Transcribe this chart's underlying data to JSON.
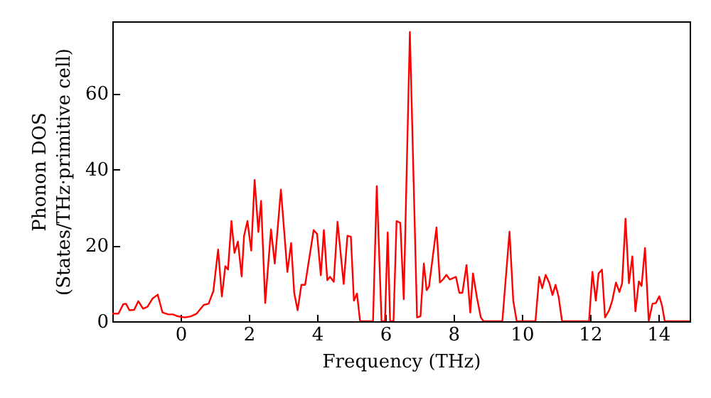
{
  "chart_data": {
    "type": "line",
    "xlabel": "Frequency (THz)",
    "ylabel": "Phonon DOS\n(States/THz·primitive cell)",
    "xlim": [
      -2,
      14.92
    ],
    "ylim": [
      0,
      79
    ],
    "xticks": [
      0,
      2,
      4,
      6,
      8,
      10,
      12,
      14
    ],
    "yticks": [
      0,
      20,
      40,
      60
    ],
    "grid": false,
    "marker": "none",
    "line_style": "solid",
    "x": [
      -2.0,
      -1.82,
      -1.68,
      -1.6,
      -1.5,
      -1.36,
      -1.24,
      -1.1,
      -0.97,
      -0.82,
      -0.67,
      -0.53,
      -0.36,
      -0.22,
      -0.08,
      0.13,
      0.3,
      0.47,
      0.68,
      0.82,
      0.96,
      1.1,
      1.21,
      1.31,
      1.39,
      1.49,
      1.58,
      1.68,
      1.79,
      1.86,
      1.96,
      2.07,
      2.17,
      2.28,
      2.36,
      2.48,
      2.65,
      2.76,
      2.94,
      3.13,
      3.24,
      3.33,
      3.43,
      3.54,
      3.65,
      3.74,
      3.9,
      4.0,
      4.11,
      4.2,
      4.3,
      4.38,
      4.49,
      4.6,
      4.78,
      4.89,
      4.99,
      5.08,
      5.17,
      5.26,
      5.64,
      5.75,
      5.89,
      5.99,
      6.07,
      6.14,
      6.24,
      6.33,
      6.44,
      6.54,
      6.72,
      6.93,
      7.03,
      7.13,
      7.21,
      7.28,
      7.5,
      7.6,
      7.69,
      7.79,
      7.89,
      7.97,
      8.07,
      8.17,
      8.26,
      8.38,
      8.49,
      8.57,
      8.69,
      8.8,
      8.88,
      9.43,
      9.64,
      9.75,
      9.85,
      10.4,
      10.51,
      10.6,
      10.7,
      10.81,
      10.9,
      10.99,
      11.08,
      11.18,
      11.97,
      12.07,
      12.17,
      12.25,
      12.35,
      12.44,
      12.56,
      12.65,
      12.76,
      12.86,
      12.94,
      13.04,
      13.14,
      13.24,
      13.33,
      13.43,
      13.51,
      13.61,
      13.72,
      13.83,
      13.93,
      14.03,
      14.11,
      14.19,
      14.92
    ],
    "series": [
      {
        "color": "#ff0000",
        "values": [
          2.0,
          2.0,
          4.5,
          4.6,
          2.9,
          3.0,
          5.3,
          3.3,
          3.8,
          6.0,
          7.0,
          2.3,
          1.8,
          1.8,
          1.3,
          1.0,
          1.3,
          2.0,
          4.3,
          4.6,
          7.9,
          18.9,
          6.5,
          14.5,
          13.6,
          26.4,
          18,
          21,
          11.8,
          22.5,
          26.4,
          18.6,
          37.2,
          23.5,
          31.7,
          4.8,
          24.2,
          15.2,
          34.7,
          13,
          20.6,
          7.5,
          2.9,
          9.6,
          9.6,
          14.8,
          24.0,
          23,
          12.1,
          24,
          10.8,
          11.7,
          10.4,
          26.2,
          9.8,
          22.5,
          22.3,
          5.4,
          7.3,
          0,
          0,
          35.6,
          0,
          0,
          23.4,
          0,
          0,
          26.4,
          25.9,
          5.8,
          76.2,
          1.0,
          1.3,
          15.2,
          8.2,
          9.1,
          24.7,
          10.2,
          11,
          12.2,
          11,
          11.3,
          11.7,
          7.5,
          7.5,
          14.8,
          2.3,
          12.6,
          6.0,
          1.0,
          0,
          0,
          23.6,
          5.4,
          0,
          0,
          11.7,
          8.7,
          12.2,
          10,
          6.9,
          9.6,
          6.4,
          0,
          0,
          13,
          5.4,
          12.6,
          13.6,
          1.0,
          2.9,
          5.4,
          10.2,
          7.7,
          10,
          27.0,
          10,
          17.1,
          2.6,
          10.5,
          9.3,
          19.3,
          0,
          4.6,
          4.8,
          6.6,
          4.1,
          0,
          0
        ]
      }
    ]
  }
}
